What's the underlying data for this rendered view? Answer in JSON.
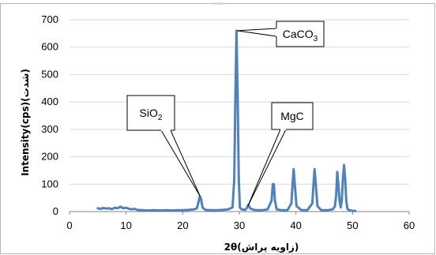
{
  "chart_data": {
    "type": "line",
    "xlabel": "2θ(زاویه پراش)",
    "ylabel": "Intensity(cps)(شدت)",
    "xlim": [
      0,
      60
    ],
    "ylim": [
      0,
      700
    ],
    "xticks": [
      0,
      10,
      20,
      30,
      40,
      50,
      60
    ],
    "yticks": [
      0,
      100,
      200,
      300,
      400,
      500,
      600,
      700
    ],
    "grid": "horizontal",
    "legend": "none",
    "series_color": "#4f81bd",
    "series": [
      {
        "x": [
          5,
          5.5,
          6,
          6.5,
          7,
          7.5,
          8,
          8.5,
          9,
          9.5,
          10,
          10.5,
          11,
          11.5,
          12,
          13,
          14,
          15,
          16,
          17,
          18,
          19,
          20,
          21,
          22,
          22.5,
          22.8,
          23,
          23.2,
          23.5,
          24,
          25,
          26,
          27,
          28,
          28.8,
          29.1,
          29.3,
          29.5,
          29.7,
          29.9,
          30.1,
          30.4,
          31,
          31.3,
          31.6,
          31.9,
          32.3,
          33,
          34,
          35,
          35.7,
          35.9,
          36.1,
          36.3,
          36.6,
          37.5,
          38.5,
          39.2,
          39.4,
          39.6,
          39.8,
          40.1,
          41,
          42,
          42.9,
          43.1,
          43.3,
          43.5,
          43.8,
          44.5,
          45.5,
          46.5,
          46.9,
          47.1,
          47.3,
          47.5,
          47.7,
          47.9,
          48.1,
          48.3,
          48.5,
          48.7,
          48.9,
          49.1,
          49.4,
          50,
          50.5
        ],
        "values": [
          12,
          10,
          13,
          11,
          12,
          9,
          14,
          12,
          18,
          12,
          14,
          10,
          8,
          10,
          6,
          5,
          4,
          5,
          4,
          5,
          4,
          5,
          5,
          6,
          8,
          12,
          35,
          55,
          50,
          15,
          6,
          5,
          5,
          6,
          8,
          15,
          120,
          420,
          660,
          420,
          120,
          15,
          8,
          6,
          12,
          25,
          12,
          8,
          5,
          5,
          8,
          40,
          100,
          100,
          40,
          8,
          5,
          5,
          30,
          100,
          155,
          100,
          20,
          5,
          5,
          30,
          100,
          155,
          100,
          20,
          5,
          5,
          8,
          20,
          60,
          145,
          100,
          40,
          15,
          40,
          120,
          170,
          120,
          40,
          10,
          5,
          3,
          2
        ]
      }
    ],
    "annotations": [
      {
        "label": "SiO",
        "subscript": "2",
        "x": 23.1,
        "y": 55
      },
      {
        "label": "MgC",
        "subscript": "",
        "x": 31.5,
        "y": 20
      },
      {
        "label": "CaCO",
        "subscript": "3",
        "x": 29.6,
        "y": 660
      }
    ]
  }
}
